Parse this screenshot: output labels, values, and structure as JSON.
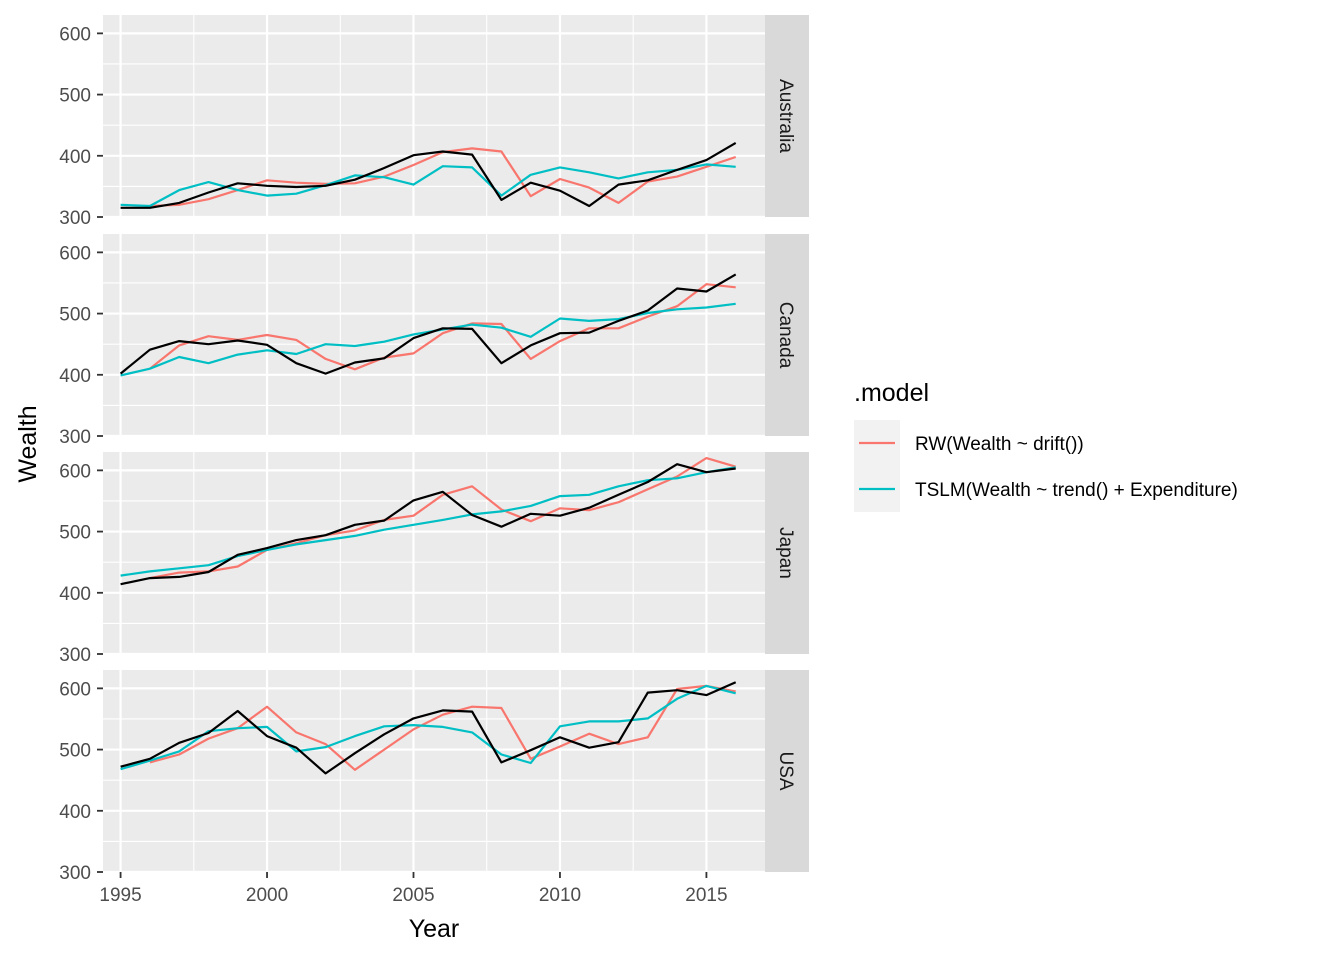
{
  "chart_data": {
    "type": "line",
    "xlabel": "Year",
    "ylabel": "Wealth",
    "xlim": [
      1994.4,
      2017.0
    ],
    "ylim": [
      300,
      630
    ],
    "x_ticks": [
      1995,
      2000,
      2005,
      2010,
      2015
    ],
    "y_ticks": [
      300,
      400,
      500,
      600
    ],
    "grid": true,
    "legend": {
      "title": ".model",
      "position": "right",
      "entries": [
        {
          "label": "RW(Wealth ~ drift())",
          "color": "#F8766D"
        },
        {
          "label": "TSLM(Wealth ~ trend() + Expenditure)",
          "color": "#00BFC4"
        }
      ]
    },
    "actual_color": "#000000",
    "panels": [
      {
        "name": "Australia",
        "actual": {
          "x": [
            1995,
            1996,
            1997,
            1998,
            1999,
            2000,
            2001,
            2002,
            2003,
            2004,
            2005,
            2006,
            2007,
            2008,
            2009,
            2010,
            2011,
            2012,
            2013,
            2014,
            2015,
            2016
          ],
          "y": [
            315,
            315,
            323,
            340,
            355,
            351,
            349,
            351,
            361,
            380,
            401,
            407,
            402,
            328,
            356,
            343,
            318,
            353,
            360,
            377,
            393,
            421
          ]
        },
        "series": [
          {
            "name": "RW(Wealth ~ drift())",
            "color": "#F8766D",
            "x": [
              1996,
              1997,
              1998,
              1999,
              2000,
              2001,
              2002,
              2003,
              2004,
              2005,
              2006,
              2007,
              2008,
              2009,
              2010,
              2011,
              2012,
              2013,
              2014,
              2015,
              2016
            ],
            "y": [
              318,
              320,
              329,
              344,
              360,
              356,
              354,
              355,
              366,
              385,
              406,
              412,
              407,
              334,
              362,
              348,
              323,
              358,
              366,
              382,
              398
            ]
          },
          {
            "name": "TSLM(Wealth ~ trend() + Expenditure)",
            "color": "#00BFC4",
            "x": [
              1995,
              1996,
              1997,
              1998,
              1999,
              2000,
              2001,
              2002,
              2003,
              2004,
              2005,
              2006,
              2007,
              2008,
              2009,
              2010,
              2011,
              2012,
              2013,
              2014,
              2015,
              2016
            ],
            "y": [
              320,
              318,
              344,
              357,
              344,
              335,
              338,
              352,
              368,
              365,
              353,
              383,
              381,
              335,
              369,
              381,
              373,
              363,
              373,
              377,
              386,
              382
            ]
          }
        ]
      },
      {
        "name": "Canada",
        "actual": {
          "x": [
            1995,
            1996,
            1997,
            1998,
            1999,
            2000,
            2001,
            2002,
            2003,
            2004,
            2005,
            2006,
            2007,
            2008,
            2009,
            2010,
            2011,
            2012,
            2013,
            2014,
            2015,
            2016
          ],
          "y": [
            402,
            441,
            455,
            450,
            456,
            449,
            419,
            402,
            420,
            427,
            460,
            476,
            475,
            419,
            448,
            468,
            469,
            488,
            505,
            541,
            536,
            564
          ]
        },
        "series": [
          {
            "name": "RW(Wealth ~ drift())",
            "color": "#F8766D",
            "x": [
              1996,
              1997,
              1998,
              1999,
              2000,
              2001,
              2002,
              2003,
              2004,
              2005,
              2006,
              2007,
              2008,
              2009,
              2010,
              2011,
              2012,
              2013,
              2014,
              2015,
              2016
            ],
            "y": [
              410,
              448,
              463,
              457,
              465,
              457,
              426,
              409,
              428,
              435,
              468,
              484,
              483,
              426,
              455,
              476,
              476,
              495,
              512,
              548,
              543
            ]
          },
          {
            "name": "TSLM(Wealth ~ trend() + Expenditure)",
            "color": "#00BFC4",
            "x": [
              1995,
              1996,
              1997,
              1998,
              1999,
              2000,
              2001,
              2002,
              2003,
              2004,
              2005,
              2006,
              2007,
              2008,
              2009,
              2010,
              2011,
              2012,
              2013,
              2014,
              2015,
              2016
            ],
            "y": [
              399,
              410,
              429,
              419,
              433,
              440,
              434,
              450,
              447,
              454,
              466,
              474,
              482,
              477,
              462,
              492,
              488,
              491,
              501,
              507,
              510,
              516
            ]
          }
        ]
      },
      {
        "name": "Japan",
        "actual": {
          "x": [
            1995,
            1996,
            1997,
            1998,
            1999,
            2000,
            2001,
            2002,
            2003,
            2004,
            2005,
            2006,
            2007,
            2008,
            2009,
            2010,
            2011,
            2012,
            2013,
            2014,
            2015,
            2016
          ],
          "y": [
            414,
            424,
            426,
            434,
            462,
            473,
            486,
            494,
            511,
            518,
            551,
            565,
            527,
            508,
            529,
            526,
            539,
            560,
            581,
            610,
            597,
            603
          ]
        },
        "series": [
          {
            "name": "RW(Wealth ~ drift())",
            "color": "#F8766D",
            "x": [
              1996,
              1997,
              1998,
              1999,
              2000,
              2001,
              2002,
              2003,
              2004,
              2005,
              2006,
              2007,
              2008,
              2009,
              2010,
              2011,
              2012,
              2013,
              2014,
              2015,
              2016
            ],
            "y": [
              424,
              433,
              435,
              443,
              470,
              481,
              494,
              502,
              519,
              526,
              560,
              574,
              536,
              517,
              538,
              535,
              548,
              569,
              590,
              620,
              606
            ]
          },
          {
            "name": "TSLM(Wealth ~ trend() + Expenditure)",
            "color": "#00BFC4",
            "x": [
              1995,
              1996,
              1997,
              1998,
              1999,
              2000,
              2001,
              2002,
              2003,
              2004,
              2005,
              2006,
              2007,
              2008,
              2009,
              2010,
              2011,
              2012,
              2013,
              2014,
              2015,
              2016
            ],
            "y": [
              428,
              435,
              440,
              445,
              460,
              470,
              479,
              486,
              493,
              503,
              511,
              519,
              528,
              533,
              542,
              558,
              560,
              574,
              584,
              587,
              597,
              605
            ]
          }
        ]
      },
      {
        "name": "USA",
        "actual": {
          "x": [
            1995,
            1996,
            1997,
            1998,
            1999,
            2000,
            2001,
            2002,
            2003,
            2004,
            2005,
            2006,
            2007,
            2008,
            2009,
            2010,
            2011,
            2012,
            2013,
            2014,
            2015,
            2016
          ],
          "y": [
            472,
            485,
            511,
            527,
            563,
            522,
            503,
            461,
            494,
            525,
            551,
            564,
            562,
            479,
            499,
            520,
            503,
            512,
            593,
            597,
            589,
            610
          ]
        },
        "series": [
          {
            "name": "RW(Wealth ~ drift())",
            "color": "#F8766D",
            "x": [
              1996,
              1997,
              1998,
              1999,
              2000,
              2001,
              2002,
              2003,
              2004,
              2005,
              2006,
              2007,
              2008,
              2009,
              2010,
              2011,
              2012,
              2013,
              2014,
              2015,
              2016
            ],
            "y": [
              479,
              492,
              518,
              535,
              570,
              528,
              509,
              467,
              500,
              533,
              557,
              570,
              568,
              485,
              505,
              526,
              509,
              520,
              599,
              604,
              595
            ]
          },
          {
            "name": "TSLM(Wealth ~ trend() + Expenditure)",
            "color": "#00BFC4",
            "x": [
              1995,
              1996,
              1997,
              1998,
              1999,
              2000,
              2001,
              2002,
              2003,
              2004,
              2005,
              2006,
              2007,
              2008,
              2009,
              2010,
              2011,
              2012,
              2013,
              2014,
              2015,
              2016
            ],
            "y": [
              468,
              482,
              497,
              530,
              535,
              537,
              497,
              504,
              522,
              538,
              540,
              537,
              528,
              492,
              478,
              538,
              546,
              546,
              551,
              583,
              604,
              592
            ]
          }
        ]
      }
    ]
  }
}
